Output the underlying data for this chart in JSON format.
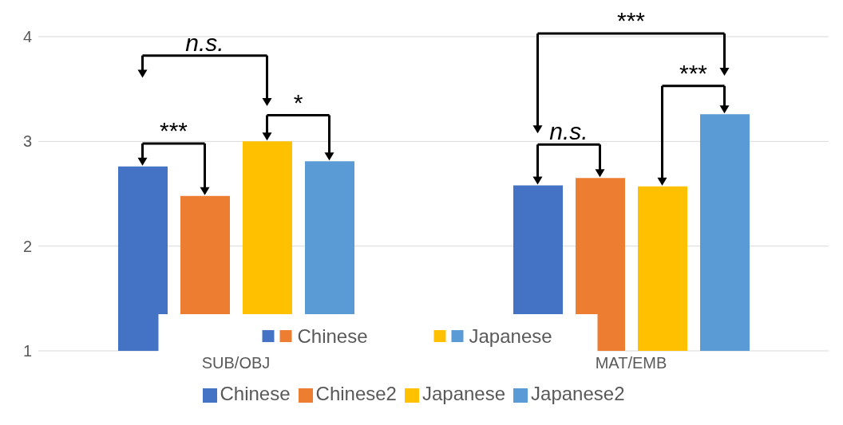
{
  "chart_data": {
    "type": "bar",
    "categories": [
      "SUB/OBJ",
      "MAT/EMB"
    ],
    "series": [
      {
        "name": "Chinese",
        "color": "#4472c4",
        "values": [
          2.76,
          2.58
        ]
      },
      {
        "name": "Chinese2",
        "color": "#ed7d31",
        "values": [
          2.48,
          2.65
        ]
      },
      {
        "name": "Japanese",
        "color": "#ffc000",
        "values": [
          3.0,
          2.57
        ]
      },
      {
        "name": "Japanese2",
        "color": "#5b9bd5",
        "values": [
          2.81,
          3.26
        ]
      }
    ],
    "ylim": [
      1,
      4
    ],
    "yticks": [
      1,
      2,
      3,
      4
    ],
    "grid": "y",
    "legend": "bottom",
    "annotations": [
      "n.s.",
      "***",
      "*",
      "***",
      "n.s.",
      "***",
      "Chinese",
      "Japanese"
    ]
  }
}
